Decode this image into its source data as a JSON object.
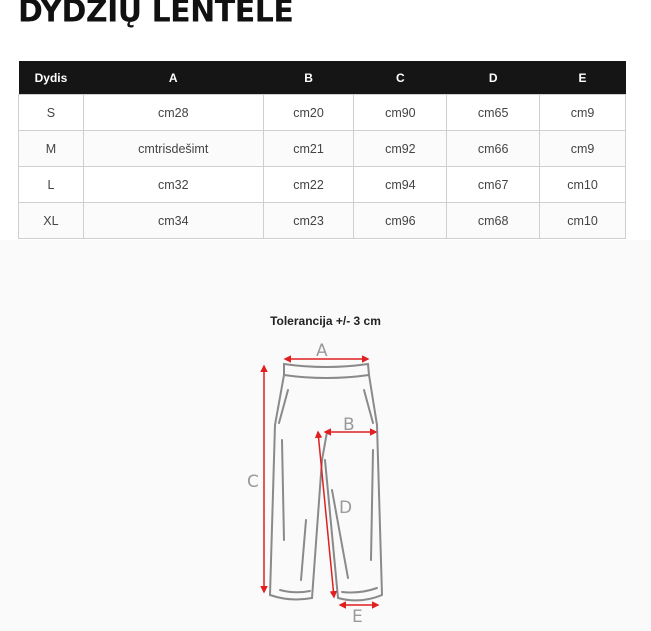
{
  "title": "DYDŽIŲ LENTELĖ",
  "table": {
    "headers": [
      "Dydis",
      "A",
      "B",
      "C",
      "D",
      "E"
    ],
    "rows": [
      [
        "S",
        "cm28",
        "cm20",
        "cm90",
        "cm65",
        "cm9"
      ],
      [
        "M",
        "cmtrisdešimt",
        "cm21",
        "cm92",
        "cm66",
        "cm9"
      ],
      [
        "L",
        "cm32",
        "cm22",
        "cm94",
        "cm67",
        "cm10"
      ],
      [
        "XL",
        "cm34",
        "cm23",
        "cm96",
        "cm68",
        "cm10"
      ]
    ]
  },
  "diagram": {
    "tolerance": "Tolerancija +/- 3 cm",
    "labels": {
      "a": "A",
      "b": "B",
      "c": "C",
      "d": "D",
      "e": "E"
    },
    "arrow_color": "#e02020",
    "outline_color": "#8a8a8a"
  }
}
